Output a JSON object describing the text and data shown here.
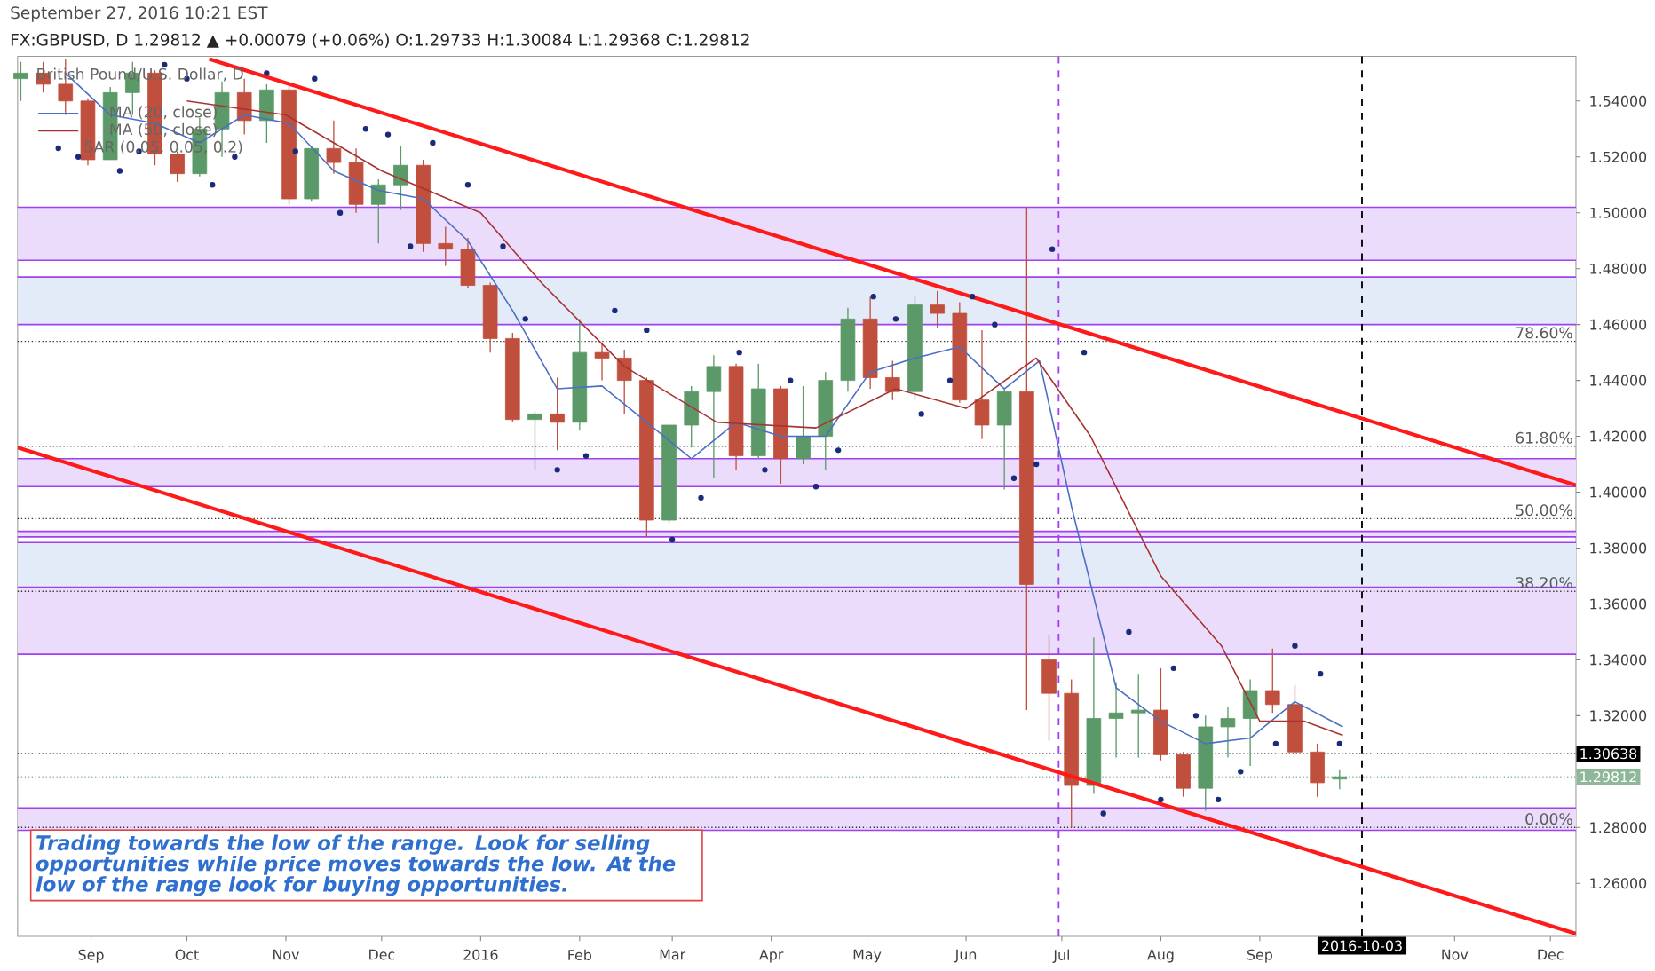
{
  "chart_data": {
    "type": "candlestick",
    "title": "FX:GBPUSD, D 1.29812 ▲ +0.00079 (+0.06%) O:1.29733 H:1.30084 L:1.29368 C:1.29812",
    "subtitle": "September 27, 2016 10:21 EST",
    "legend_title": "British Pound/U.S. Dollar, D",
    "x": [
      "2015-08-10",
      "2015-08-17",
      "2015-08-24",
      "2015-08-31",
      "2015-09-07",
      "2015-09-14",
      "2015-09-21",
      "2015-09-28",
      "2015-10-05",
      "2015-10-12",
      "2015-10-19",
      "2015-10-26",
      "2015-11-02",
      "2015-11-09",
      "2015-11-16",
      "2015-11-23",
      "2015-11-30",
      "2015-12-07",
      "2015-12-14",
      "2015-12-21",
      "2015-12-28",
      "2016-01-04",
      "2016-01-11",
      "2016-01-18",
      "2016-01-25",
      "2016-02-01",
      "2016-02-08",
      "2016-02-15",
      "2016-02-22",
      "2016-02-29",
      "2016-03-07",
      "2016-03-14",
      "2016-03-21",
      "2016-03-28",
      "2016-04-04",
      "2016-04-11",
      "2016-04-18",
      "2016-04-25",
      "2016-05-02",
      "2016-05-09",
      "2016-05-16",
      "2016-05-23",
      "2016-05-30",
      "2016-06-06",
      "2016-06-13",
      "2016-06-20",
      "2016-06-27",
      "2016-07-04",
      "2016-07-11",
      "2016-07-18",
      "2016-07-25",
      "2016-08-01",
      "2016-08-08",
      "2016-08-15",
      "2016-08-22",
      "2016-08-29",
      "2016-09-05",
      "2016-09-12",
      "2016-09-19",
      "2016-09-26"
    ],
    "ohlc": [
      [
        1.548,
        1.554,
        1.54,
        1.55
      ],
      [
        1.55,
        1.554,
        1.543,
        1.546
      ],
      [
        1.546,
        1.555,
        1.535,
        1.54
      ],
      [
        1.54,
        1.541,
        1.517,
        1.519
      ],
      [
        1.519,
        1.545,
        1.519,
        1.543
      ],
      [
        1.543,
        1.554,
        1.535,
        1.55
      ],
      [
        1.55,
        1.551,
        1.517,
        1.521
      ],
      [
        1.521,
        1.522,
        1.511,
        1.514
      ],
      [
        1.514,
        1.534,
        1.513,
        1.53
      ],
      [
        1.53,
        1.547,
        1.52,
        1.543
      ],
      [
        1.543,
        1.548,
        1.528,
        1.533
      ],
      [
        1.533,
        1.546,
        1.525,
        1.544
      ],
      [
        1.544,
        1.546,
        1.503,
        1.505
      ],
      [
        1.505,
        1.524,
        1.504,
        1.523
      ],
      [
        1.523,
        1.533,
        1.514,
        1.518
      ],
      [
        1.518,
        1.523,
        1.5,
        1.503
      ],
      [
        1.503,
        1.512,
        1.489,
        1.51
      ],
      [
        1.51,
        1.524,
        1.501,
        1.517
      ],
      [
        1.517,
        1.519,
        1.486,
        1.489
      ],
      [
        1.489,
        1.495,
        1.481,
        1.487
      ],
      [
        1.487,
        1.491,
        1.473,
        1.474
      ],
      [
        1.474,
        1.475,
        1.45,
        1.455
      ],
      [
        1.455,
        1.457,
        1.425,
        1.426
      ],
      [
        1.426,
        1.429,
        1.408,
        1.428
      ],
      [
        1.428,
        1.441,
        1.415,
        1.425
      ],
      [
        1.425,
        1.462,
        1.422,
        1.45
      ],
      [
        1.45,
        1.453,
        1.44,
        1.448
      ],
      [
        1.448,
        1.451,
        1.428,
        1.44
      ],
      [
        1.44,
        1.441,
        1.384,
        1.39
      ],
      [
        1.39,
        1.424,
        1.389,
        1.424
      ],
      [
        1.424,
        1.438,
        1.416,
        1.436
      ],
      [
        1.436,
        1.449,
        1.405,
        1.445
      ],
      [
        1.445,
        1.446,
        1.408,
        1.413
      ],
      [
        1.413,
        1.446,
        1.412,
        1.437
      ],
      [
        1.437,
        1.438,
        1.403,
        1.412
      ],
      [
        1.412,
        1.438,
        1.41,
        1.42
      ],
      [
        1.42,
        1.443,
        1.408,
        1.44
      ],
      [
        1.44,
        1.466,
        1.436,
        1.462
      ],
      [
        1.462,
        1.47,
        1.437,
        1.441
      ],
      [
        1.441,
        1.447,
        1.433,
        1.436
      ],
      [
        1.436,
        1.47,
        1.433,
        1.467
      ],
      [
        1.467,
        1.472,
        1.459,
        1.464
      ],
      [
        1.464,
        1.468,
        1.432,
        1.433
      ],
      [
        1.433,
        1.458,
        1.419,
        1.424
      ],
      [
        1.424,
        1.437,
        1.401,
        1.436
      ],
      [
        1.436,
        1.502,
        1.322,
        1.367
      ],
      [
        1.34,
        1.349,
        1.311,
        1.328
      ],
      [
        1.328,
        1.333,
        1.28,
        1.295
      ],
      [
        1.295,
        1.348,
        1.292,
        1.319
      ],
      [
        1.319,
        1.332,
        1.305,
        1.321
      ],
      [
        1.321,
        1.335,
        1.305,
        1.322
      ],
      [
        1.322,
        1.337,
        1.304,
        1.306
      ],
      [
        1.306,
        1.307,
        1.291,
        1.294
      ],
      [
        1.294,
        1.32,
        1.286,
        1.316
      ],
      [
        1.316,
        1.323,
        1.305,
        1.319
      ],
      [
        1.319,
        1.333,
        1.302,
        1.329
      ],
      [
        1.329,
        1.344,
        1.321,
        1.324
      ],
      [
        1.324,
        1.331,
        1.306,
        1.307
      ],
      [
        1.307,
        1.31,
        1.291,
        1.296
      ],
      [
        1.29733,
        1.30084,
        1.29368,
        1.29812
      ]
    ],
    "colors": [
      "#5b9a68",
      "#c0503d",
      "#c0503d",
      "#c0503d",
      "#5b9a68",
      "#5b9a68",
      "#c0503d",
      "#c0503d",
      "#5b9a68",
      "#5b9a68",
      "#c0503d",
      "#5b9a68",
      "#c0503d",
      "#5b9a68",
      "#c0503d",
      "#c0503d",
      "#5b9a68",
      "#5b9a68",
      "#c0503d",
      "#c0503d",
      "#c0503d",
      "#c0503d",
      "#c0503d",
      "#5b9a68",
      "#c0503d",
      "#5b9a68",
      "#c0503d",
      "#c0503d",
      "#c0503d",
      "#5b9a68",
      "#5b9a68",
      "#5b9a68",
      "#c0503d",
      "#5b9a68",
      "#c0503d",
      "#5b9a68",
      "#5b9a68",
      "#5b9a68",
      "#c0503d",
      "#c0503d",
      "#5b9a68",
      "#c0503d",
      "#c0503d",
      "#c0503d",
      "#5b9a68",
      "#c0503d",
      "#c0503d",
      "#c0503d",
      "#5b9a68",
      "#5b9a68",
      "#5b9a68",
      "#c0503d",
      "#c0503d",
      "#5b9a68",
      "#5b9a68",
      "#5b9a68",
      "#c0503d",
      "#c0503d",
      "#c0503d",
      "#5b9a68"
    ],
    "series": [
      {
        "type": "line",
        "name": "MA (20, close)",
        "color": "#4a6fc4",
        "x": [
          "2015-08-24",
          "2015-09-07",
          "2015-09-21",
          "2015-10-05",
          "2015-10-19",
          "2015-11-02",
          "2015-11-16",
          "2015-11-30",
          "2015-12-14",
          "2015-12-28",
          "2016-01-11",
          "2016-01-25",
          "2016-02-08",
          "2016-02-22",
          "2016-03-07",
          "2016-03-21",
          "2016-04-04",
          "2016-04-18",
          "2016-05-02",
          "2016-05-16",
          "2016-05-30",
          "2016-06-13",
          "2016-06-24",
          "2016-07-04",
          "2016-07-18",
          "2016-08-01",
          "2016-08-15",
          "2016-08-29",
          "2016-09-12",
          "2016-09-27"
        ],
        "values": [
          1.55,
          1.535,
          1.532,
          1.525,
          1.535,
          1.532,
          1.515,
          1.508,
          1.505,
          1.49,
          1.465,
          1.437,
          1.438,
          1.425,
          1.412,
          1.425,
          1.42,
          1.42,
          1.443,
          1.448,
          1.452,
          1.437,
          1.447,
          1.395,
          1.33,
          1.318,
          1.31,
          1.312,
          1.325,
          1.316
        ]
      },
      {
        "type": "line",
        "name": "MA (50, close)",
        "color": "#a83232",
        "x": [
          "2015-10-01",
          "2015-11-01",
          "2015-12-01",
          "2016-01-01",
          "2016-01-20",
          "2016-02-15",
          "2016-03-15",
          "2016-04-15",
          "2016-05-10",
          "2016-06-01",
          "2016-06-23",
          "2016-07-10",
          "2016-08-01",
          "2016-08-20",
          "2016-09-01",
          "2016-09-15",
          "2016-09-27"
        ],
        "values": [
          1.54,
          1.535,
          1.515,
          1.5,
          1.475,
          1.445,
          1.425,
          1.423,
          1.437,
          1.43,
          1.448,
          1.42,
          1.37,
          1.345,
          1.318,
          1.318,
          1.313
        ]
      },
      {
        "type": "scatter",
        "name": "SAR (0.05, 0.05, 0.2)",
        "color": "#1a2a7a",
        "marker": "circle",
        "x": [
          "2015-08-28",
          "2015-09-10",
          "2015-09-16",
          "2015-09-24",
          "2015-10-01",
          "2015-10-09",
          "2015-10-16",
          "2015-10-26",
          "2015-11-04",
          "2015-11-10",
          "2015-11-18",
          "2015-11-26",
          "2015-12-03",
          "2015-12-10",
          "2015-12-17",
          "2015-12-28",
          "2016-01-08",
          "2016-01-15",
          "2016-01-25",
          "2016-02-03",
          "2016-02-12",
          "2016-02-22",
          "2016-03-01",
          "2016-03-10",
          "2016-03-22",
          "2016-03-30",
          "2016-04-07",
          "2016-04-15",
          "2016-04-22",
          "2016-05-03",
          "2016-05-10",
          "2016-05-18",
          "2016-05-27",
          "2016-06-03",
          "2016-06-10",
          "2016-06-16",
          "2016-06-23",
          "2016-06-28",
          "2016-07-08",
          "2016-07-14",
          "2016-07-22",
          "2016-08-01",
          "2016-08-05",
          "2016-08-12",
          "2016-08-19",
          "2016-08-26",
          "2016-09-06",
          "2016-09-12",
          "2016-09-20",
          "2016-09-26"
        ],
        "values": [
          1.52,
          1.515,
          1.522,
          1.553,
          1.548,
          1.51,
          1.52,
          1.55,
          1.522,
          1.548,
          1.5,
          1.53,
          1.528,
          1.488,
          1.525,
          1.51,
          1.488,
          1.462,
          1.408,
          1.413,
          1.465,
          1.458,
          1.383,
          1.398,
          1.45,
          1.408,
          1.44,
          1.402,
          1.415,
          1.47,
          1.462,
          1.428,
          1.44,
          1.47,
          1.46,
          1.405,
          1.41,
          1.487,
          1.45,
          1.285,
          1.35,
          1.29,
          1.337,
          1.32,
          1.29,
          1.3,
          1.31,
          1.345,
          1.335,
          1.31
        ]
      },
      {
        "type": "line",
        "color": "#ff1a1a",
        "x": [
          "2015-10-08",
          "2016-12-09"
        ],
        "values": [
          1.555,
          1.4025
        ]
      },
      {
        "type": "line",
        "color": "#ff1a1a",
        "x": [
          "2015-08-09",
          "2016-12-09"
        ],
        "values": [
          1.416,
          1.242
        ]
      }
    ],
    "bands": [
      {
        "axis": "y",
        "from": 1.46,
        "to": 1.477,
        "color": "#e3ebf9"
      },
      {
        "axis": "y",
        "from": 1.349,
        "to": 1.382,
        "color": "#e3ebf9"
      },
      {
        "axis": "y",
        "from": 1.483,
        "to": 1.502,
        "color": "#ecdcfb"
      },
      {
        "axis": "y",
        "from": 1.402,
        "to": 1.412,
        "color": "#ecdcfb"
      },
      {
        "axis": "y",
        "from": 1.384,
        "to": 1.386,
        "color": "#ecdcfb"
      },
      {
        "axis": "y",
        "from": 1.342,
        "to": 1.366,
        "color": "#ecdcfb"
      },
      {
        "axis": "y",
        "from": 1.279,
        "to": 1.287,
        "color": "#ecdcfb"
      }
    ],
    "ref_lines": [
      {
        "axis": "y",
        "value": 1.454,
        "color": "#333333",
        "line_style": "dotted"
      },
      {
        "axis": "y",
        "value": 1.4164,
        "color": "#333333",
        "line_style": "dotted"
      },
      {
        "axis": "y",
        "value": 1.3905,
        "color": "#333333",
        "line_style": "dotted"
      },
      {
        "axis": "y",
        "value": 1.3645,
        "color": "#333333",
        "line_style": "dotted"
      },
      {
        "axis": "y",
        "value": 1.28,
        "color": "#333333",
        "line_style": "dotted"
      },
      {
        "axis": "y",
        "value": 1.29812,
        "label": "1.29812",
        "color": "#8fb89a",
        "line_style": "dotted"
      },
      {
        "axis": "y",
        "value": 1.30638,
        "label": "1.30638",
        "color": "#000000",
        "line_style": "dotted"
      },
      {
        "axis": "x",
        "value": "2016-06-30",
        "color": "#a040f0",
        "line_style": "dashed"
      },
      {
        "axis": "x",
        "value": "2016-10-03",
        "label": "2016-10-03",
        "color": "#000000",
        "line_style": "dashed"
      }
    ],
    "annotations": [
      "Trading towards the low of the range. Look for selling opportunities while price moves towards the low. At the low of the range look for buying opportunities.",
      {
        "text": "78.60%",
        "x": "2016-12-09",
        "y": 1.454
      },
      {
        "text": "61.80%",
        "x": "2016-12-09",
        "y": 1.4164
      },
      {
        "text": "50.00%",
        "x": "2016-12-09",
        "y": 1.3905
      },
      {
        "text": "38.20%",
        "x": "2016-12-09",
        "y": 1.3645
      },
      {
        "text": "0.00%",
        "x": "2016-12-09",
        "y": 1.28
      }
    ],
    "legend": "top left",
    "xlim": [
      "2015-08-09",
      "2016-12-09"
    ],
    "ylim": [
      1.241,
      1.556
    ],
    "xticks": [
      {
        "value": "2015-09-01",
        "label": "Sep"
      },
      {
        "value": "2015-10-01",
        "label": "Oct"
      },
      {
        "value": "2015-11-01",
        "label": "Nov"
      },
      {
        "value": "2015-12-01",
        "label": "Dec"
      },
      {
        "value": "2016-01-01",
        "label": "2016"
      },
      {
        "value": "2016-02-01",
        "label": "Feb"
      },
      {
        "value": "2016-03-01",
        "label": "Mar"
      },
      {
        "value": "2016-04-01",
        "label": "Apr"
      },
      {
        "value": "2016-05-01",
        "label": "May"
      },
      {
        "value": "2016-06-01",
        "label": "Jun"
      },
      {
        "value": "2016-07-01",
        "label": "Jul"
      },
      {
        "value": "2016-08-01",
        "label": "Aug"
      },
      {
        "value": "2016-09-01",
        "label": "Sep"
      },
      {
        "value": "2016-11-01",
        "label": "Nov"
      },
      {
        "value": "2016-12-01",
        "label": "Dec"
      }
    ],
    "yticks": [
      {
        "value": 1.26,
        "label": "1.26000"
      },
      {
        "value": 1.28,
        "label": "1.28000"
      },
      {
        "value": 1.3,
        "label": null
      },
      {
        "value": 1.32,
        "label": "1.32000"
      },
      {
        "value": 1.34,
        "label": "1.34000"
      },
      {
        "value": 1.36,
        "label": "1.36000"
      },
      {
        "value": 1.38,
        "label": "1.38000"
      },
      {
        "value": 1.4,
        "label": "1.40000"
      },
      {
        "value": 1.42,
        "label": "1.42000"
      },
      {
        "value": 1.44,
        "label": "1.44000"
      },
      {
        "value": 1.46,
        "label": "1.46000"
      },
      {
        "value": 1.48,
        "label": "1.48000"
      },
      {
        "value": 1.5,
        "label": "1.50000"
      },
      {
        "value": 1.52,
        "label": "1.52000"
      },
      {
        "value": 1.54,
        "label": "1.54000"
      }
    ]
  }
}
